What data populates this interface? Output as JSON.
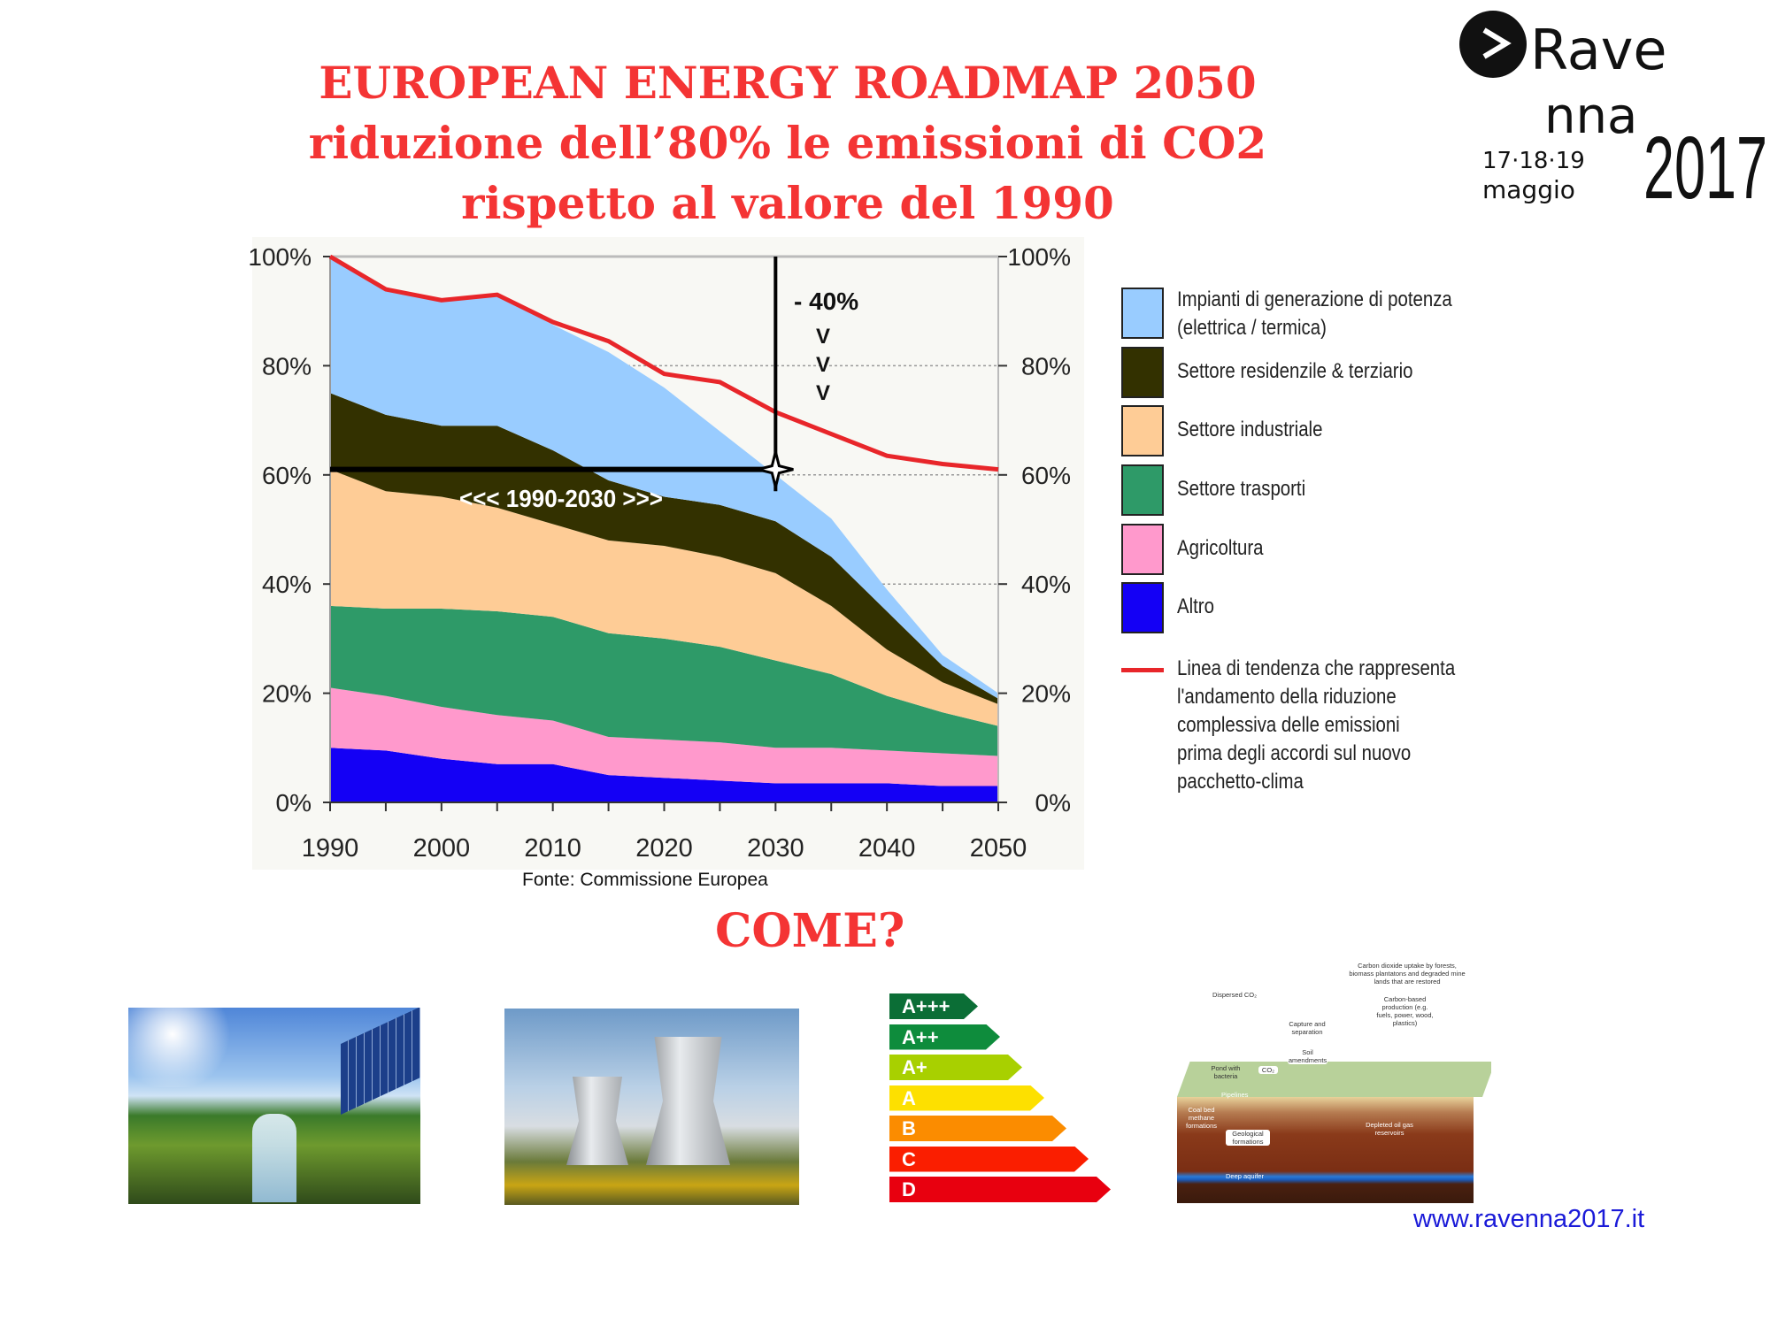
{
  "title": {
    "line1": "EUROPEAN ENERGY ROADMAP 2050",
    "line2": "riduzione dell’80% le emissioni di CO2",
    "line3": "rispetto al valore del 1990"
  },
  "logo": {
    "text_line1": "Rave",
    "text_line2": "nna",
    "dates": "17·18·19",
    "month": "maggio",
    "year": "2017"
  },
  "chart_data": {
    "type": "area",
    "stacked": true,
    "x": [
      1990,
      1995,
      2000,
      2005,
      2010,
      2015,
      2020,
      2025,
      2030,
      2035,
      2040,
      2045,
      2050
    ],
    "x_ticks": [
      "1990",
      "2000",
      "2010",
      "2020",
      "2030",
      "2040",
      "2050"
    ],
    "y_ticks": [
      "0%",
      "20%",
      "40%",
      "60%",
      "80%",
      "100%"
    ],
    "ylim": [
      0,
      100
    ],
    "grid": "dotted at 40%, 60%, 80%",
    "legend_position": "right",
    "series": [
      {
        "name": "Altro",
        "color": "#1400f5",
        "values": [
          10,
          9.5,
          8,
          7,
          7,
          5,
          4.5,
          4,
          3.5,
          3.5,
          3.5,
          3,
          3
        ]
      },
      {
        "name": "Agricoltura",
        "color": "#ff99cc",
        "values": [
          11,
          10,
          9.5,
          9,
          8,
          7,
          7,
          7,
          6.5,
          6.5,
          6,
          6,
          5.5
        ]
      },
      {
        "name": "Settore trasporti",
        "color": "#2e9a68",
        "values": [
          15,
          16,
          18,
          19,
          19,
          19,
          18.5,
          17.5,
          16,
          13.5,
          10,
          7.5,
          5.5
        ]
      },
      {
        "name": "Settore industriale",
        "color": "#fecc96",
        "values": [
          25,
          21.5,
          20.5,
          19,
          17,
          17,
          17,
          16.5,
          16,
          12.5,
          8.5,
          5.5,
          4
        ]
      },
      {
        "name": "Settore residenzile & terziario",
        "color": "#333100",
        "values": [
          14,
          14,
          13,
          15,
          13.5,
          11,
          9,
          9.5,
          9.5,
          9,
          7,
          3,
          1
        ]
      },
      {
        "name": "Impianti di generazione di potenza (elettrica / termica)",
        "color": "#99ccff",
        "values": [
          25,
          23,
          23,
          24,
          23,
          23.5,
          20,
          13.5,
          8.5,
          7,
          4,
          2,
          1
        ]
      }
    ],
    "trend_line": {
      "name": "Linea di tendenza che rappresenta l'andamento della riduzione complessiva delle emissioni prima degli accordi sul nuovo pacchetto-clima",
      "color": "#e8262a",
      "values": [
        100,
        94,
        92,
        93,
        88,
        84.5,
        78.5,
        77,
        71.5,
        67.5,
        63.5,
        62,
        61
      ]
    },
    "annotations": {
      "reduction": "- 40%",
      "arrows": [
        "V",
        "V",
        "V"
      ],
      "period": "<<< 1990-2030 >>>",
      "marker_year": 2030,
      "marker_value": 60
    }
  },
  "legend": {
    "items": [
      {
        "line1": "Impianti di generazione di potenza",
        "line2": "(elettrica / termica)",
        "color": "#99ccff"
      },
      {
        "line1": "Settore residenzile & terziario",
        "color": "#333100"
      },
      {
        "line1": "Settore industriale",
        "color": "#fecc96"
      },
      {
        "line1": "Settore trasporti",
        "color": "#2e9a68"
      },
      {
        "line1": "Agricoltura",
        "color": "#ff99cc"
      },
      {
        "line1": "Altro",
        "color": "#1400f5"
      }
    ],
    "trend_lines": [
      "Linea di tendenza che rappresenta",
      "l'andamento della riduzione",
      "complessiva delle emissioni",
      "prima degli accordi sul nuovo",
      "pacchetto-clima"
    ]
  },
  "source": "Fonte: Commissione Europea",
  "come": "COME?",
  "energy_label": {
    "classes": [
      {
        "label": "A+++",
        "color": "#0b6e36"
      },
      {
        "label": "A++",
        "color": "#0e8c3c"
      },
      {
        "label": "A+",
        "color": "#a8d000"
      },
      {
        "label": "A",
        "color": "#fde000"
      },
      {
        "label": "B",
        "color": "#fb8c00"
      },
      {
        "label": "C",
        "color": "#fa1e00"
      },
      {
        "label": "D",
        "color": "#e8000f"
      }
    ]
  },
  "ccs_diagram": {
    "labels": {
      "uptake": "Carbon dioxide uptake by forests, biomass plantatons and degraded mine lands that are restored",
      "dispersed": "Dispersed CO₂",
      "carbon_based": "Carbon-based production (e.g. fuels, power, wood, plastics)",
      "capture": "Capture and separation",
      "soil": "Soil amendments",
      "pond": "Pond with bacteria",
      "co2": "CO₂",
      "pipelines": "Pipelines",
      "coal": "Coal bed methane formations",
      "geological": "Geological formations",
      "depleted": "Depleted oil gas reservoirs",
      "aquifer": "Deep aquifer"
    }
  },
  "url": "www.ravenna2017.it"
}
